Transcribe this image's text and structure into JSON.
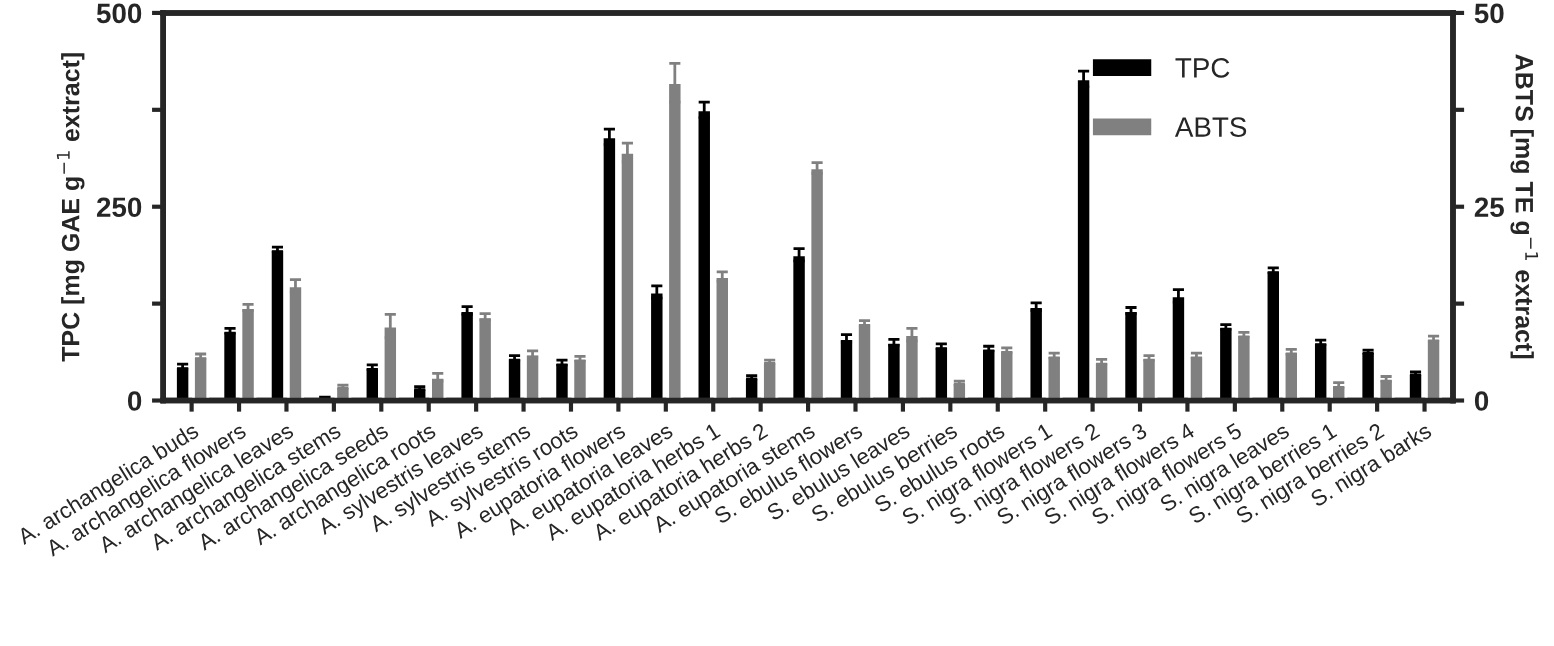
{
  "chart_data": {
    "type": "bar",
    "categories": [
      "A. archangelica buds",
      "A. archangelica flowers",
      "A. archangelica leaves",
      "A. archangelica stems",
      "A. archangelica seeds",
      "A. archangelica roots",
      "A. sylvestris leaves",
      "A. sylvestris stems",
      "A. sylvestris roots",
      "A. eupatoria flowers",
      "A. eupatoria leaves",
      "A. eupatoria herbs 1",
      "A. eupatoria herbs 2",
      "A. eupatoria stems",
      "S. ebulus flowers",
      "S. ebulus leaves",
      "S. ebulus berries",
      "S. ebulus roots",
      "S. nigra flowers 1",
      "S. nigra flowers 2",
      "S. nigra flowers 3",
      "S. nigra flowers 4",
      "S. nigra flowers 5",
      "S. nigra leaves",
      "S. nigra berries 1",
      "S. nigra berries 2",
      "S. nigra barks"
    ],
    "series": [
      {
        "name": "TPC",
        "color": "#000000",
        "values": [
          44,
          90,
          195,
          8,
          43,
          16,
          116,
          55,
          49,
          340,
          140,
          375,
          30,
          188,
          80,
          75,
          70,
          67,
          121,
          415,
          116,
          135,
          95,
          168,
          75,
          63,
          35
        ],
        "errors": [
          3,
          3,
          3,
          null,
          3,
          2,
          5,
          3,
          3,
          10,
          8,
          10,
          2,
          8,
          5,
          4,
          3,
          3,
          5,
          10,
          4,
          8,
          3,
          3,
          3,
          2,
          2
        ]
      },
      {
        "name": "ABTS",
        "color": "#808080",
        "axis": "y2",
        "values": [
          5.7,
          12,
          14.8,
          1.8,
          9.6,
          3.0,
          10.8,
          6.0,
          5.4,
          32,
          41,
          16,
          5.0,
          30,
          10,
          8.5,
          2.3,
          6.5,
          5.8,
          5.0,
          5.5,
          5.8,
          8.5,
          6.3,
          2.0,
          2.8,
          8.0
        ],
        "errors": [
          0.3,
          0.4,
          0.8,
          0.2,
          1.5,
          0.5,
          0.4,
          0.4,
          0.3,
          1.2,
          2.5,
          0.6,
          0.2,
          0.7,
          0.3,
          0.8,
          0.2,
          0.3,
          0.3,
          0.3,
          0.3,
          0.3,
          0.3,
          0.3,
          0.3,
          0.3,
          0.3
        ]
      }
    ],
    "ylabel": "TPC [mg GAE g$^{−1}$ extract]",
    "y2label": "ABTS [mg TE g$^{−1}$ extract]",
    "ylim": [
      0,
      500
    ],
    "yticks": [
      0,
      {
        "value": 125,
        "label": null
      },
      250,
      {
        "value": 375,
        "label": null
      },
      500
    ],
    "y2lim": [
      0,
      50
    ],
    "y2ticks": [
      0,
      {
        "value": 12.5,
        "label": null
      },
      25,
      {
        "value": 37.5,
        "label": null
      },
      50
    ],
    "legend": "top right",
    "grid": false
  }
}
